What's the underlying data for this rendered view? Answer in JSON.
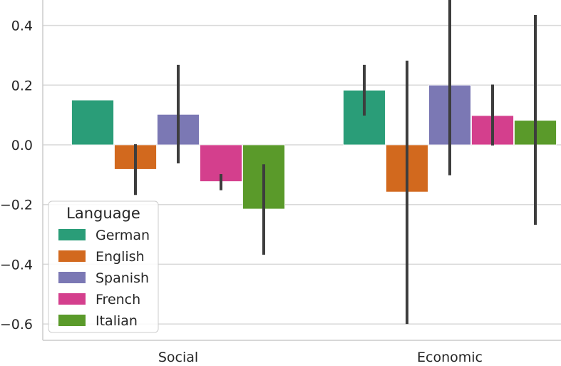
{
  "chart_data": {
    "type": "bar",
    "title": "",
    "xlabel": "",
    "ylabel": "",
    "categories": [
      "Social",
      "Economic"
    ],
    "ylim": [
      -0.65,
      0.48
    ],
    "yticks": [
      0.4,
      0.2,
      0.0,
      -0.2,
      -0.4,
      -0.6
    ],
    "ytick_labels": [
      "0.4",
      "0.2",
      "0.0",
      "−0.2",
      "−0.4",
      "−0.6"
    ],
    "grid": true,
    "legend_title": "Language",
    "legend_position": "lower-left",
    "series": [
      {
        "name": "German",
        "color": "#2a9d78",
        "values": [
          0.15,
          0.183
        ],
        "error": [
          [
            0.15,
            0.15
          ],
          [
            0.098,
            0.268
          ]
        ]
      },
      {
        "name": "English",
        "color": "#d2691e",
        "values": [
          -0.082,
          -0.158
        ],
        "error": [
          [
            -0.168,
            0.002
          ],
          [
            -0.6,
            0.282
          ]
        ]
      },
      {
        "name": "Spanish",
        "color": "#7b78b4",
        "values": [
          0.102,
          0.2
        ],
        "error": [
          [
            -0.062,
            0.268
          ],
          [
            -0.102,
            0.52
          ]
        ]
      },
      {
        "name": "French",
        "color": "#d43f8d",
        "values": [
          -0.123,
          0.098
        ],
        "error": [
          [
            -0.152,
            -0.098
          ],
          [
            -0.002,
            0.202
          ]
        ]
      },
      {
        "name": "Italian",
        "color": "#5a9a2a",
        "values": [
          -0.215,
          0.082
        ],
        "error": [
          [
            -0.368,
            -0.065
          ],
          [
            -0.268,
            0.435
          ]
        ]
      }
    ]
  }
}
